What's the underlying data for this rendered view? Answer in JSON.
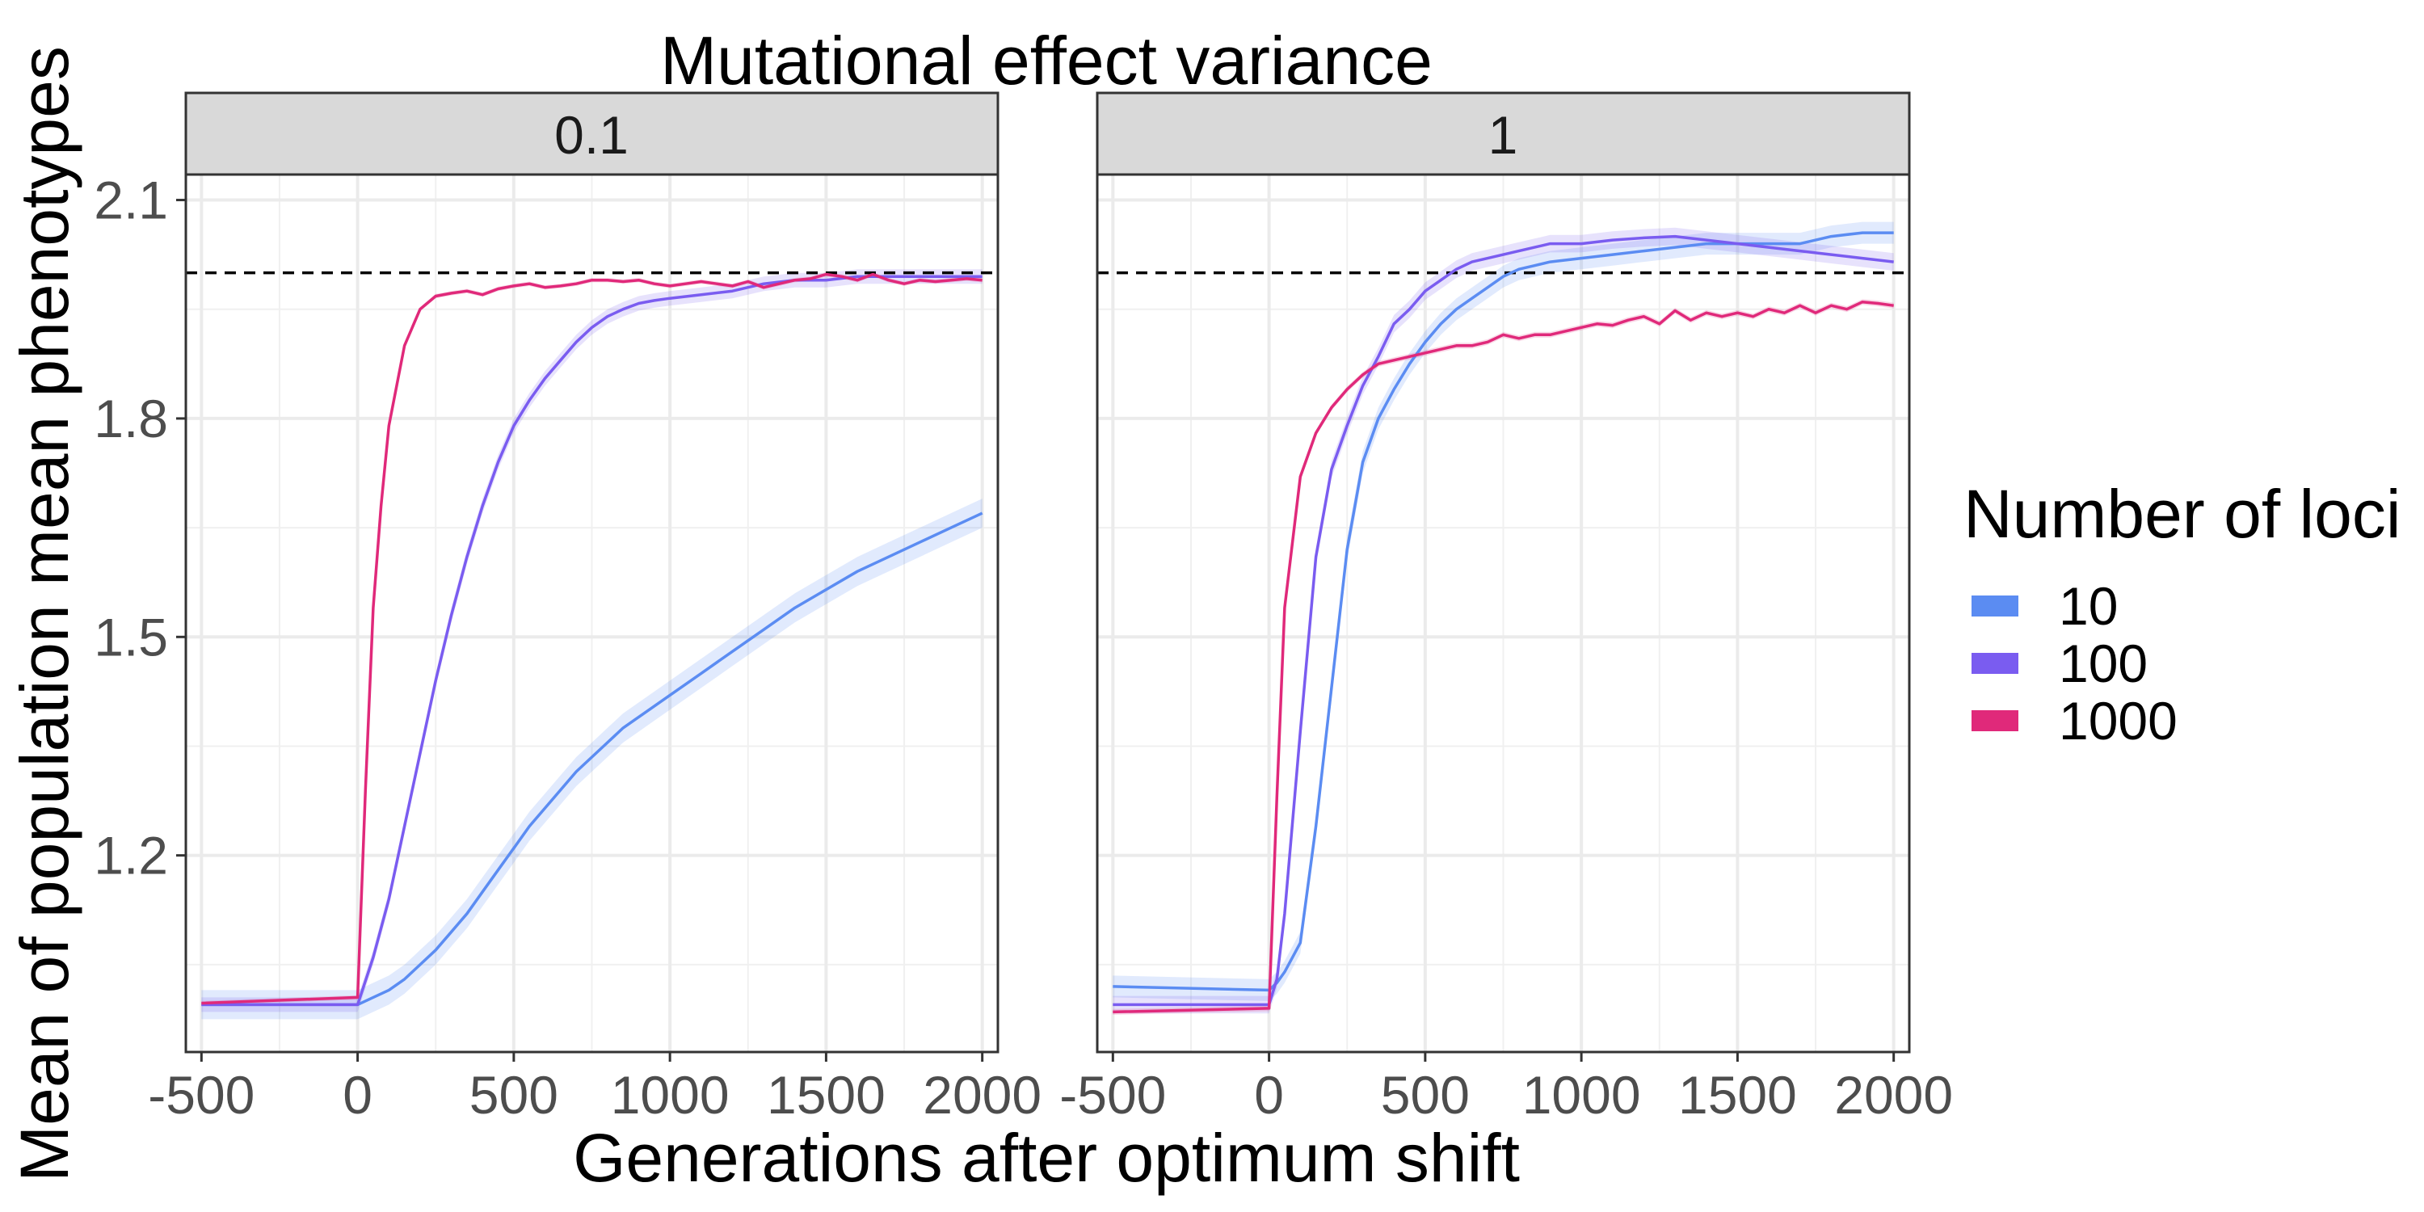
{
  "chart_data": {
    "type": "line",
    "title": "Mutational effect variance",
    "xlabel": "Generations after optimum shift",
    "ylabel": "Mean of population mean phenotypes",
    "xlim": [
      -550,
      2050
    ],
    "ylim": [
      0.93,
      2.135
    ],
    "x_ticks": [
      -500,
      0,
      500,
      1000,
      1500,
      2000
    ],
    "x_tick_labels": [
      "-500",
      "0",
      "500",
      "1000",
      "1500",
      "2000"
    ],
    "y_ticks": [
      1.2,
      1.5,
      1.8,
      2.1
    ],
    "y_tick_labels": [
      "1.2",
      "1.5",
      "1.8",
      "2.1"
    ],
    "reference_line": {
      "y": 2.0,
      "style": "dashed",
      "color": "#000000"
    },
    "grid": true,
    "legend": {
      "title": "Number of loci",
      "position": "right",
      "entries": [
        {
          "label": "10",
          "color": "#5B8CF2"
        },
        {
          "label": "100",
          "color": "#7A5CF0"
        },
        {
          "label": "1000",
          "color": "#E0297A"
        }
      ]
    },
    "panels": [
      {
        "strip_label": "0.1",
        "series": [
          {
            "name": "10",
            "color": "#5B8CF2",
            "band": 0.02,
            "x": [
              -500,
              0,
              50,
              100,
              150,
              200,
              250,
              300,
              350,
              400,
              450,
              500,
              550,
              600,
              650,
              700,
              750,
              800,
              850,
              900,
              950,
              1000,
              1100,
              1200,
              1300,
              1400,
              1500,
              1600,
              1700,
              1800,
              1900,
              2000
            ],
            "y": [
              0.995,
              0.995,
              1.005,
              1.015,
              1.03,
              1.05,
              1.07,
              1.095,
              1.12,
              1.15,
              1.18,
              1.21,
              1.24,
              1.265,
              1.29,
              1.315,
              1.335,
              1.355,
              1.375,
              1.39,
              1.405,
              1.42,
              1.45,
              1.48,
              1.51,
              1.54,
              1.565,
              1.59,
              1.61,
              1.63,
              1.65,
              1.67
            ]
          },
          {
            "name": "100",
            "color": "#7A5CF0",
            "band": 0.01,
            "x": [
              -500,
              0,
              50,
              100,
              150,
              200,
              250,
              300,
              350,
              400,
              450,
              500,
              550,
              600,
              650,
              700,
              750,
              800,
              850,
              900,
              950,
              1000,
              1100,
              1200,
              1300,
              1400,
              1500,
              1600,
              1700,
              1800,
              1900,
              2000
            ],
            "y": [
              0.995,
              0.995,
              1.06,
              1.14,
              1.24,
              1.34,
              1.44,
              1.53,
              1.61,
              1.68,
              1.74,
              1.79,
              1.825,
              1.855,
              1.88,
              1.905,
              1.925,
              1.94,
              1.95,
              1.958,
              1.962,
              1.965,
              1.97,
              1.975,
              1.985,
              1.99,
              1.99,
              1.995,
              1.995,
              1.995,
              1.995,
              1.995
            ]
          },
          {
            "name": "1000",
            "color": "#E0297A",
            "band": 0.003,
            "x": [
              -500,
              0,
              25,
              50,
              75,
              100,
              150,
              200,
              250,
              300,
              350,
              400,
              450,
              500,
              550,
              600,
              650,
              700,
              750,
              800,
              850,
              900,
              950,
              1000,
              1050,
              1100,
              1150,
              1200,
              1250,
              1300,
              1350,
              1400,
              1450,
              1500,
              1550,
              1600,
              1650,
              1700,
              1750,
              1800,
              1850,
              1900,
              1950,
              2000
            ],
            "y": [
              0.997,
              1.005,
              1.29,
              1.54,
              1.68,
              1.79,
              1.9,
              1.95,
              1.968,
              1.972,
              1.975,
              1.97,
              1.978,
              1.982,
              1.985,
              1.98,
              1.982,
              1.985,
              1.99,
              1.99,
              1.988,
              1.99,
              1.985,
              1.982,
              1.985,
              1.988,
              1.985,
              1.982,
              1.988,
              1.98,
              1.985,
              1.99,
              1.992,
              1.998,
              1.995,
              1.99,
              1.998,
              1.99,
              1.985,
              1.99,
              1.988,
              1.99,
              1.992,
              1.99
            ]
          }
        ]
      },
      {
        "strip_label": "1",
        "series": [
          {
            "name": "10",
            "color": "#5B8CF2",
            "band": 0.015,
            "x": [
              -500,
              0,
              25,
              50,
              100,
              150,
              200,
              250,
              300,
              350,
              400,
              450,
              500,
              550,
              600,
              650,
              700,
              750,
              800,
              850,
              900,
              1000,
              1100,
              1200,
              1300,
              1400,
              1500,
              1600,
              1700,
              1800,
              1900,
              2000
            ],
            "y": [
              1.02,
              1.015,
              1.025,
              1.04,
              1.08,
              1.24,
              1.43,
              1.62,
              1.74,
              1.8,
              1.84,
              1.875,
              1.905,
              1.93,
              1.95,
              1.965,
              1.98,
              1.995,
              2.005,
              2.01,
              2.015,
              2.02,
              2.025,
              2.03,
              2.035,
              2.04,
              2.04,
              2.04,
              2.04,
              2.05,
              2.055,
              2.055
            ]
          },
          {
            "name": "100",
            "color": "#7A5CF0",
            "band": 0.012,
            "x": [
              -500,
              0,
              25,
              50,
              100,
              150,
              200,
              250,
              300,
              350,
              400,
              450,
              500,
              550,
              600,
              650,
              700,
              750,
              800,
              850,
              900,
              950,
              1000,
              1100,
              1200,
              1300,
              1400,
              1500,
              1600,
              1700,
              1800,
              1900,
              2000
            ],
            "y": [
              0.995,
              0.995,
              1.03,
              1.12,
              1.37,
              1.61,
              1.73,
              1.79,
              1.845,
              1.885,
              1.93,
              1.95,
              1.975,
              1.99,
              2.005,
              2.015,
              2.02,
              2.025,
              2.03,
              2.035,
              2.04,
              2.04,
              2.04,
              2.045,
              2.048,
              2.05,
              2.045,
              2.04,
              2.035,
              2.03,
              2.025,
              2.02,
              2.015
            ]
          },
          {
            "name": "1000",
            "color": "#E0297A",
            "band": 0.004,
            "x": [
              -500,
              0,
              25,
              50,
              100,
              150,
              200,
              250,
              300,
              350,
              400,
              450,
              500,
              550,
              600,
              650,
              700,
              750,
              800,
              850,
              900,
              950,
              1000,
              1050,
              1100,
              1150,
              1200,
              1250,
              1300,
              1350,
              1400,
              1450,
              1500,
              1550,
              1600,
              1650,
              1700,
              1750,
              1800,
              1850,
              1900,
              1950,
              2000
            ],
            "y": [
              0.985,
              0.99,
              1.28,
              1.54,
              1.72,
              1.78,
              1.815,
              1.84,
              1.86,
              1.875,
              1.88,
              1.885,
              1.89,
              1.895,
              1.9,
              1.9,
              1.905,
              1.915,
              1.91,
              1.915,
              1.915,
              1.92,
              1.925,
              1.93,
              1.928,
              1.935,
              1.94,
              1.93,
              1.948,
              1.935,
              1.945,
              1.94,
              1.945,
              1.94,
              1.95,
              1.945,
              1.955,
              1.945,
              1.955,
              1.95,
              1.96,
              1.958,
              1.955
            ]
          }
        ]
      }
    ]
  }
}
